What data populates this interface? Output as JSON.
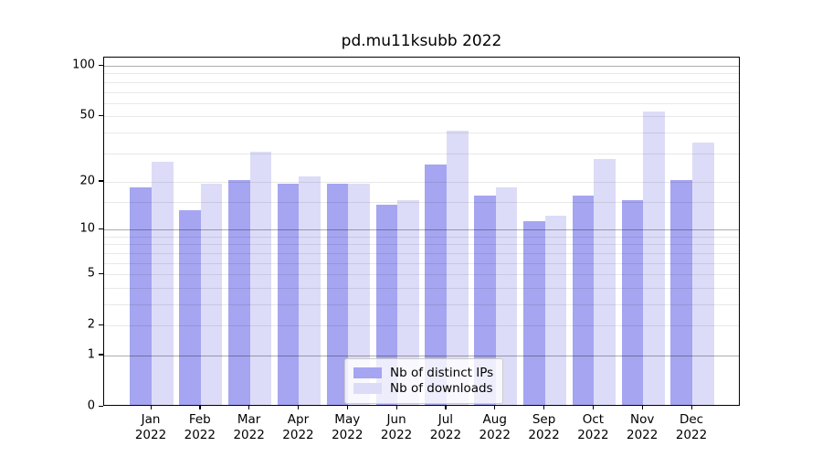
{
  "chart_data": {
    "type": "bar",
    "title": "pd.mu11ksubb 2022",
    "categories": [
      "Jan",
      "Feb",
      "Mar",
      "Apr",
      "May",
      "Jun",
      "Jul",
      "Aug",
      "Sep",
      "Oct",
      "Nov",
      "Dec"
    ],
    "x_sublabel": "2022",
    "series": [
      {
        "name": "Nb of distinct IPs",
        "color": "#a5a5f1",
        "values": [
          18,
          13,
          20,
          19,
          19,
          14,
          25,
          16,
          11,
          16,
          15,
          20
        ]
      },
      {
        "name": "Nb of downloads",
        "color": "#dcdcf8",
        "values": [
          26,
          19,
          30,
          21,
          19,
          15,
          40,
          18,
          12,
          27,
          52,
          34
        ]
      }
    ],
    "yscale": "log1p",
    "ylim": [
      0,
      112
    ],
    "yticks": [
      0,
      1,
      2,
      5,
      10,
      20,
      50,
      100
    ],
    "ytick_labels": [
      "0",
      "1",
      "2",
      "5",
      "10",
      "20",
      "50",
      "100"
    ],
    "major_grid_values": [
      1,
      10,
      100
    ],
    "minor_grid_values": [
      2,
      3,
      4,
      5,
      6,
      7,
      8,
      9,
      15,
      20,
      30,
      40,
      50,
      60,
      70,
      80,
      90
    ],
    "grid": true,
    "grid_major_color": "rgba(0,0,0,0.32)",
    "grid_minor_color": "rgba(0,0,0,0.09)",
    "legend_position": "lower center"
  }
}
